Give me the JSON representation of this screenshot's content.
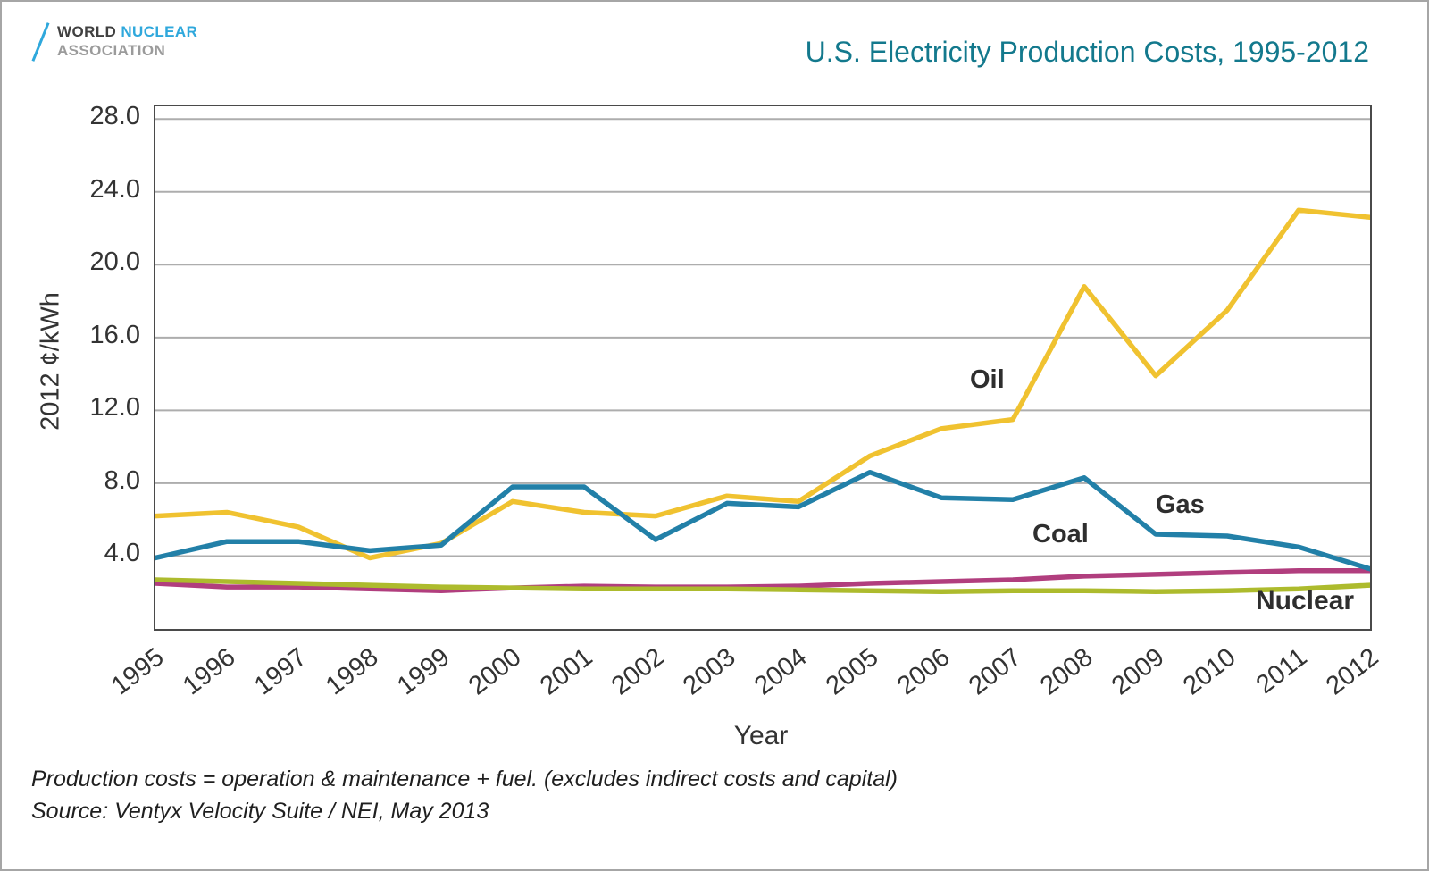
{
  "logo": {
    "word1": "WORLD",
    "word2": "NUCLEAR",
    "line2": "ASSOCIATION"
  },
  "footer": {
    "note": "Production costs = operation & maintenance + fuel. (excludes indirect costs and capital)",
    "source": "Source: Ventyx Velocity Suite / NEI, May 2013"
  },
  "colors": {
    "title": "#13798D",
    "logo_blue": "#2FA8DC",
    "grid": "#ADADAD",
    "plot_border": "#4A4A4A",
    "text": "#333333"
  },
  "chart_data": {
    "type": "line",
    "title": "U.S. Electricity Production Costs, 1995-2012",
    "xlabel": "Year",
    "ylabel": "2012 ¢/kWh",
    "ylim": [
      0,
      28.7
    ],
    "yticks": [
      4.0,
      8.0,
      12.0,
      16.0,
      20.0,
      24.0,
      28.0
    ],
    "grid": "horizontal",
    "legend": "inline-labels",
    "categories": [
      "1995",
      "1996",
      "1997",
      "1998",
      "1999",
      "2000",
      "2001",
      "2002",
      "2003",
      "2004",
      "2005",
      "2006",
      "2007",
      "2008",
      "2009",
      "2010",
      "2011",
      "2012"
    ],
    "series": [
      {
        "name": "Oil",
        "color": "#F0C230",
        "values": [
          6.2,
          6.4,
          5.6,
          3.9,
          4.7,
          7.0,
          6.4,
          6.2,
          7.3,
          7.0,
          9.5,
          11.0,
          11.5,
          18.8,
          13.9,
          17.5,
          23.0,
          22.6
        ]
      },
      {
        "name": "Coal",
        "color": "#B13E7E",
        "values": [
          2.5,
          2.3,
          2.3,
          2.2,
          2.1,
          2.25,
          2.35,
          2.3,
          2.3,
          2.35,
          2.5,
          2.6,
          2.7,
          2.9,
          3.0,
          3.1,
          3.2,
          3.2
        ]
      },
      {
        "name": "Nuclear",
        "color": "#ADBB2D",
        "values": [
          2.7,
          2.6,
          2.5,
          2.4,
          2.3,
          2.25,
          2.2,
          2.2,
          2.2,
          2.15,
          2.1,
          2.05,
          2.1,
          2.1,
          2.05,
          2.1,
          2.2,
          2.4
        ]
      },
      {
        "name": "Gas",
        "color": "#2280A8",
        "values": [
          3.9,
          4.8,
          4.8,
          4.3,
          4.6,
          7.8,
          7.8,
          4.9,
          6.9,
          6.7,
          8.6,
          7.2,
          7.1,
          8.3,
          5.2,
          5.1,
          4.5,
          3.3
        ]
      }
    ]
  }
}
